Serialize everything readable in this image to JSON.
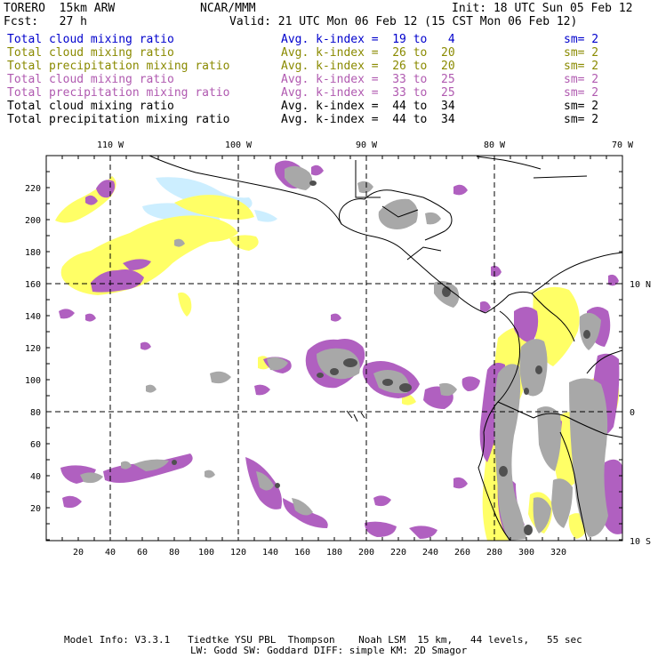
{
  "header": {
    "model": "TORERO  15km ARW",
    "center": "NCAR/MMM",
    "init": "Init: 18 UTC Sun 05 Feb 12",
    "fcst": "Fcst:   27 h",
    "valid": "Valid: 21 UTC Mon 06 Feb 12 (15 CST Mon 06 Feb 12)"
  },
  "fields": [
    {
      "name": "Total cloud mixing ratio",
      "stat": "Avg. k-index =  19 to   4",
      "sm": "sm= 2",
      "color": "#0000cc"
    },
    {
      "name": "Total cloud mixing ratio",
      "stat": "Avg. k-index =  26 to  20",
      "sm": "sm= 2",
      "color": "#8a8a00"
    },
    {
      "name": "Total precipitation mixing ratio",
      "stat": "Avg. k-index =  26 to  20",
      "sm": "sm= 2",
      "color": "#8a8a00"
    },
    {
      "name": "Total cloud mixing ratio",
      "stat": "Avg. k-index =  33 to  25",
      "sm": "sm= 2",
      "color": "#b05ab0"
    },
    {
      "name": "Total precipitation mixing ratio",
      "stat": "Avg. k-index =  33 to  25",
      "sm": "sm= 2",
      "color": "#b05ab0"
    },
    {
      "name": "Total cloud mixing ratio",
      "stat": "Avg. k-index =  44 to  34",
      "sm": "sm= 2",
      "color": "#000000"
    },
    {
      "name": "Total precipitation mixing ratio",
      "stat": "Avg. k-index =  44 to  34",
      "sm": "sm= 2",
      "color": "#000000"
    }
  ],
  "map": {
    "lon_labels": [
      "110 W",
      "100 W",
      "90 W",
      "80 W",
      "70 W"
    ],
    "lat_labels": [
      "10 N",
      "0",
      "10 S"
    ],
    "x_ticks": [
      "20",
      "40",
      "60",
      "80",
      "100",
      "120",
      "140",
      "160",
      "180",
      "200",
      "220",
      "240",
      "260",
      "280",
      "300",
      "320"
    ],
    "y_ticks": [
      "20",
      "40",
      "60",
      "80",
      "100",
      "120",
      "140",
      "160",
      "180",
      "200",
      "220"
    ],
    "colors": {
      "light_blue": "#cceeff",
      "yellow": "#ffff66",
      "purple": "#b060c0",
      "gray": "#a8a8a8",
      "dark_gray": "#505050"
    }
  },
  "footer": {
    "line1": "Model Info: V3.3.1   Tiedtke YSU PBL  Thompson    Noah LSM  15 km,   44 levels,   55 sec",
    "line2": "LW: Godd SW: Goddard DIFF: simple KM: 2D Smagor"
  }
}
